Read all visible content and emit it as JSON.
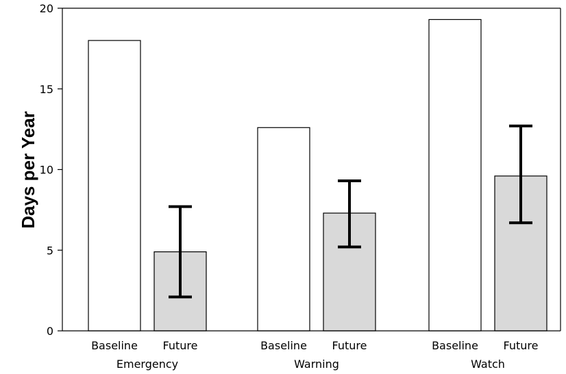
{
  "chart_data": {
    "type": "bar",
    "title": "",
    "xlabel": "",
    "ylabel": "Days per Year",
    "ylim": [
      0,
      20
    ],
    "yticks": [
      0,
      5,
      10,
      15,
      20
    ],
    "grid": false,
    "groups": [
      "Emergency",
      "Warning",
      "Watch"
    ],
    "categories": [
      "Baseline",
      "Future"
    ],
    "bars": [
      {
        "group": "Emergency",
        "category": "Baseline",
        "value": 18.0
      },
      {
        "group": "Emergency",
        "category": "Future",
        "value": 4.9,
        "error_low": 2.1,
        "error_high": 7.7
      },
      {
        "group": "Warning",
        "category": "Baseline",
        "value": 12.6
      },
      {
        "group": "Warning",
        "category": "Future",
        "value": 7.3,
        "error_low": 5.2,
        "error_high": 9.3
      },
      {
        "group": "Watch",
        "category": "Baseline",
        "value": 19.3
      },
      {
        "group": "Watch",
        "category": "Future",
        "value": 9.6,
        "error_low": 6.7,
        "error_high": 12.7
      }
    ],
    "colors": {
      "Baseline": "#ffffff",
      "Future": "#d9d9d9",
      "stroke": "#000000"
    }
  }
}
